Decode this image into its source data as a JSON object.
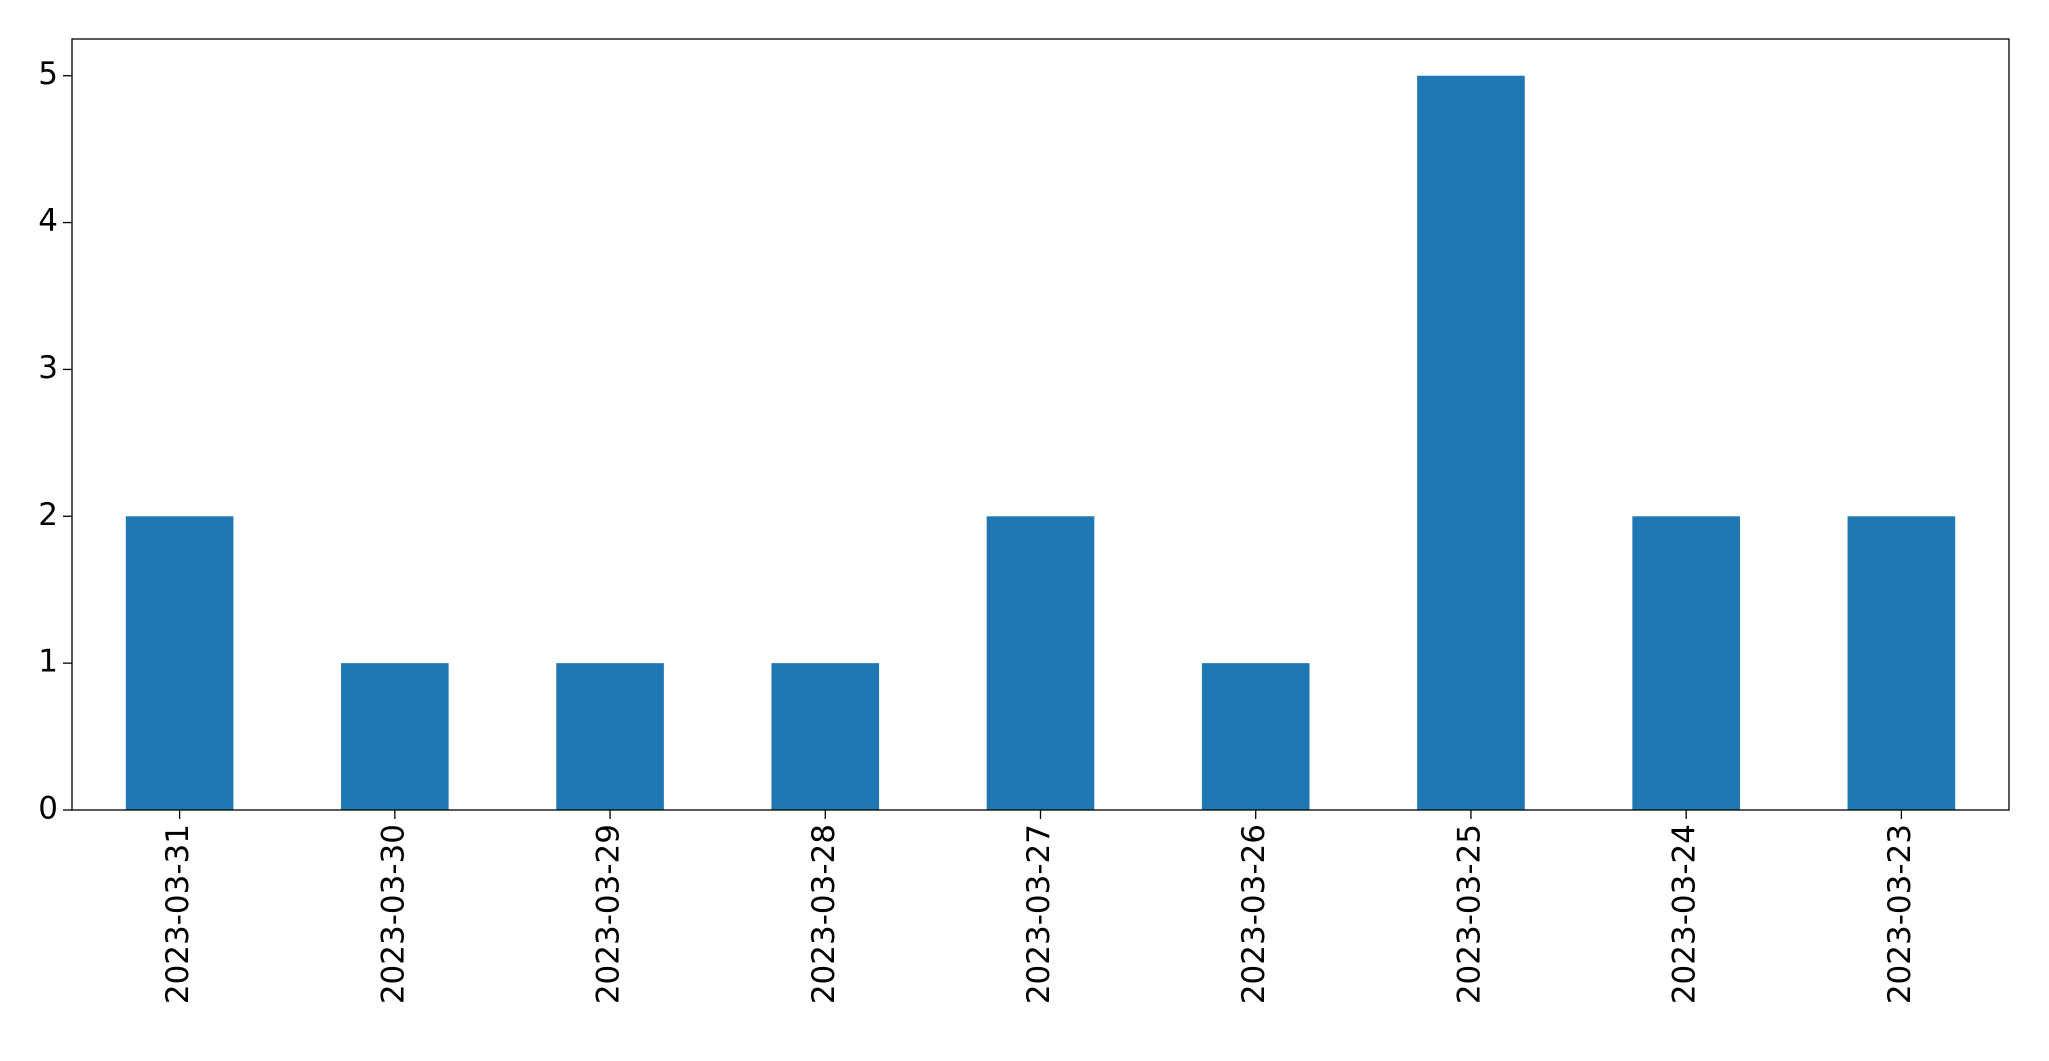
{
  "chart_data": {
    "type": "bar",
    "categories": [
      "2023-03-31",
      "2023-03-30",
      "2023-03-29",
      "2023-03-28",
      "2023-03-27",
      "2023-03-26",
      "2023-03-25",
      "2023-03-24",
      "2023-03-23"
    ],
    "values": [
      2,
      1,
      1,
      1,
      2,
      1,
      5,
      2,
      2
    ],
    "color": "#1f77b4",
    "ylim": [
      0,
      5.25
    ],
    "yticks": [
      0,
      1,
      2,
      3,
      4,
      5
    ],
    "grid": false
  }
}
